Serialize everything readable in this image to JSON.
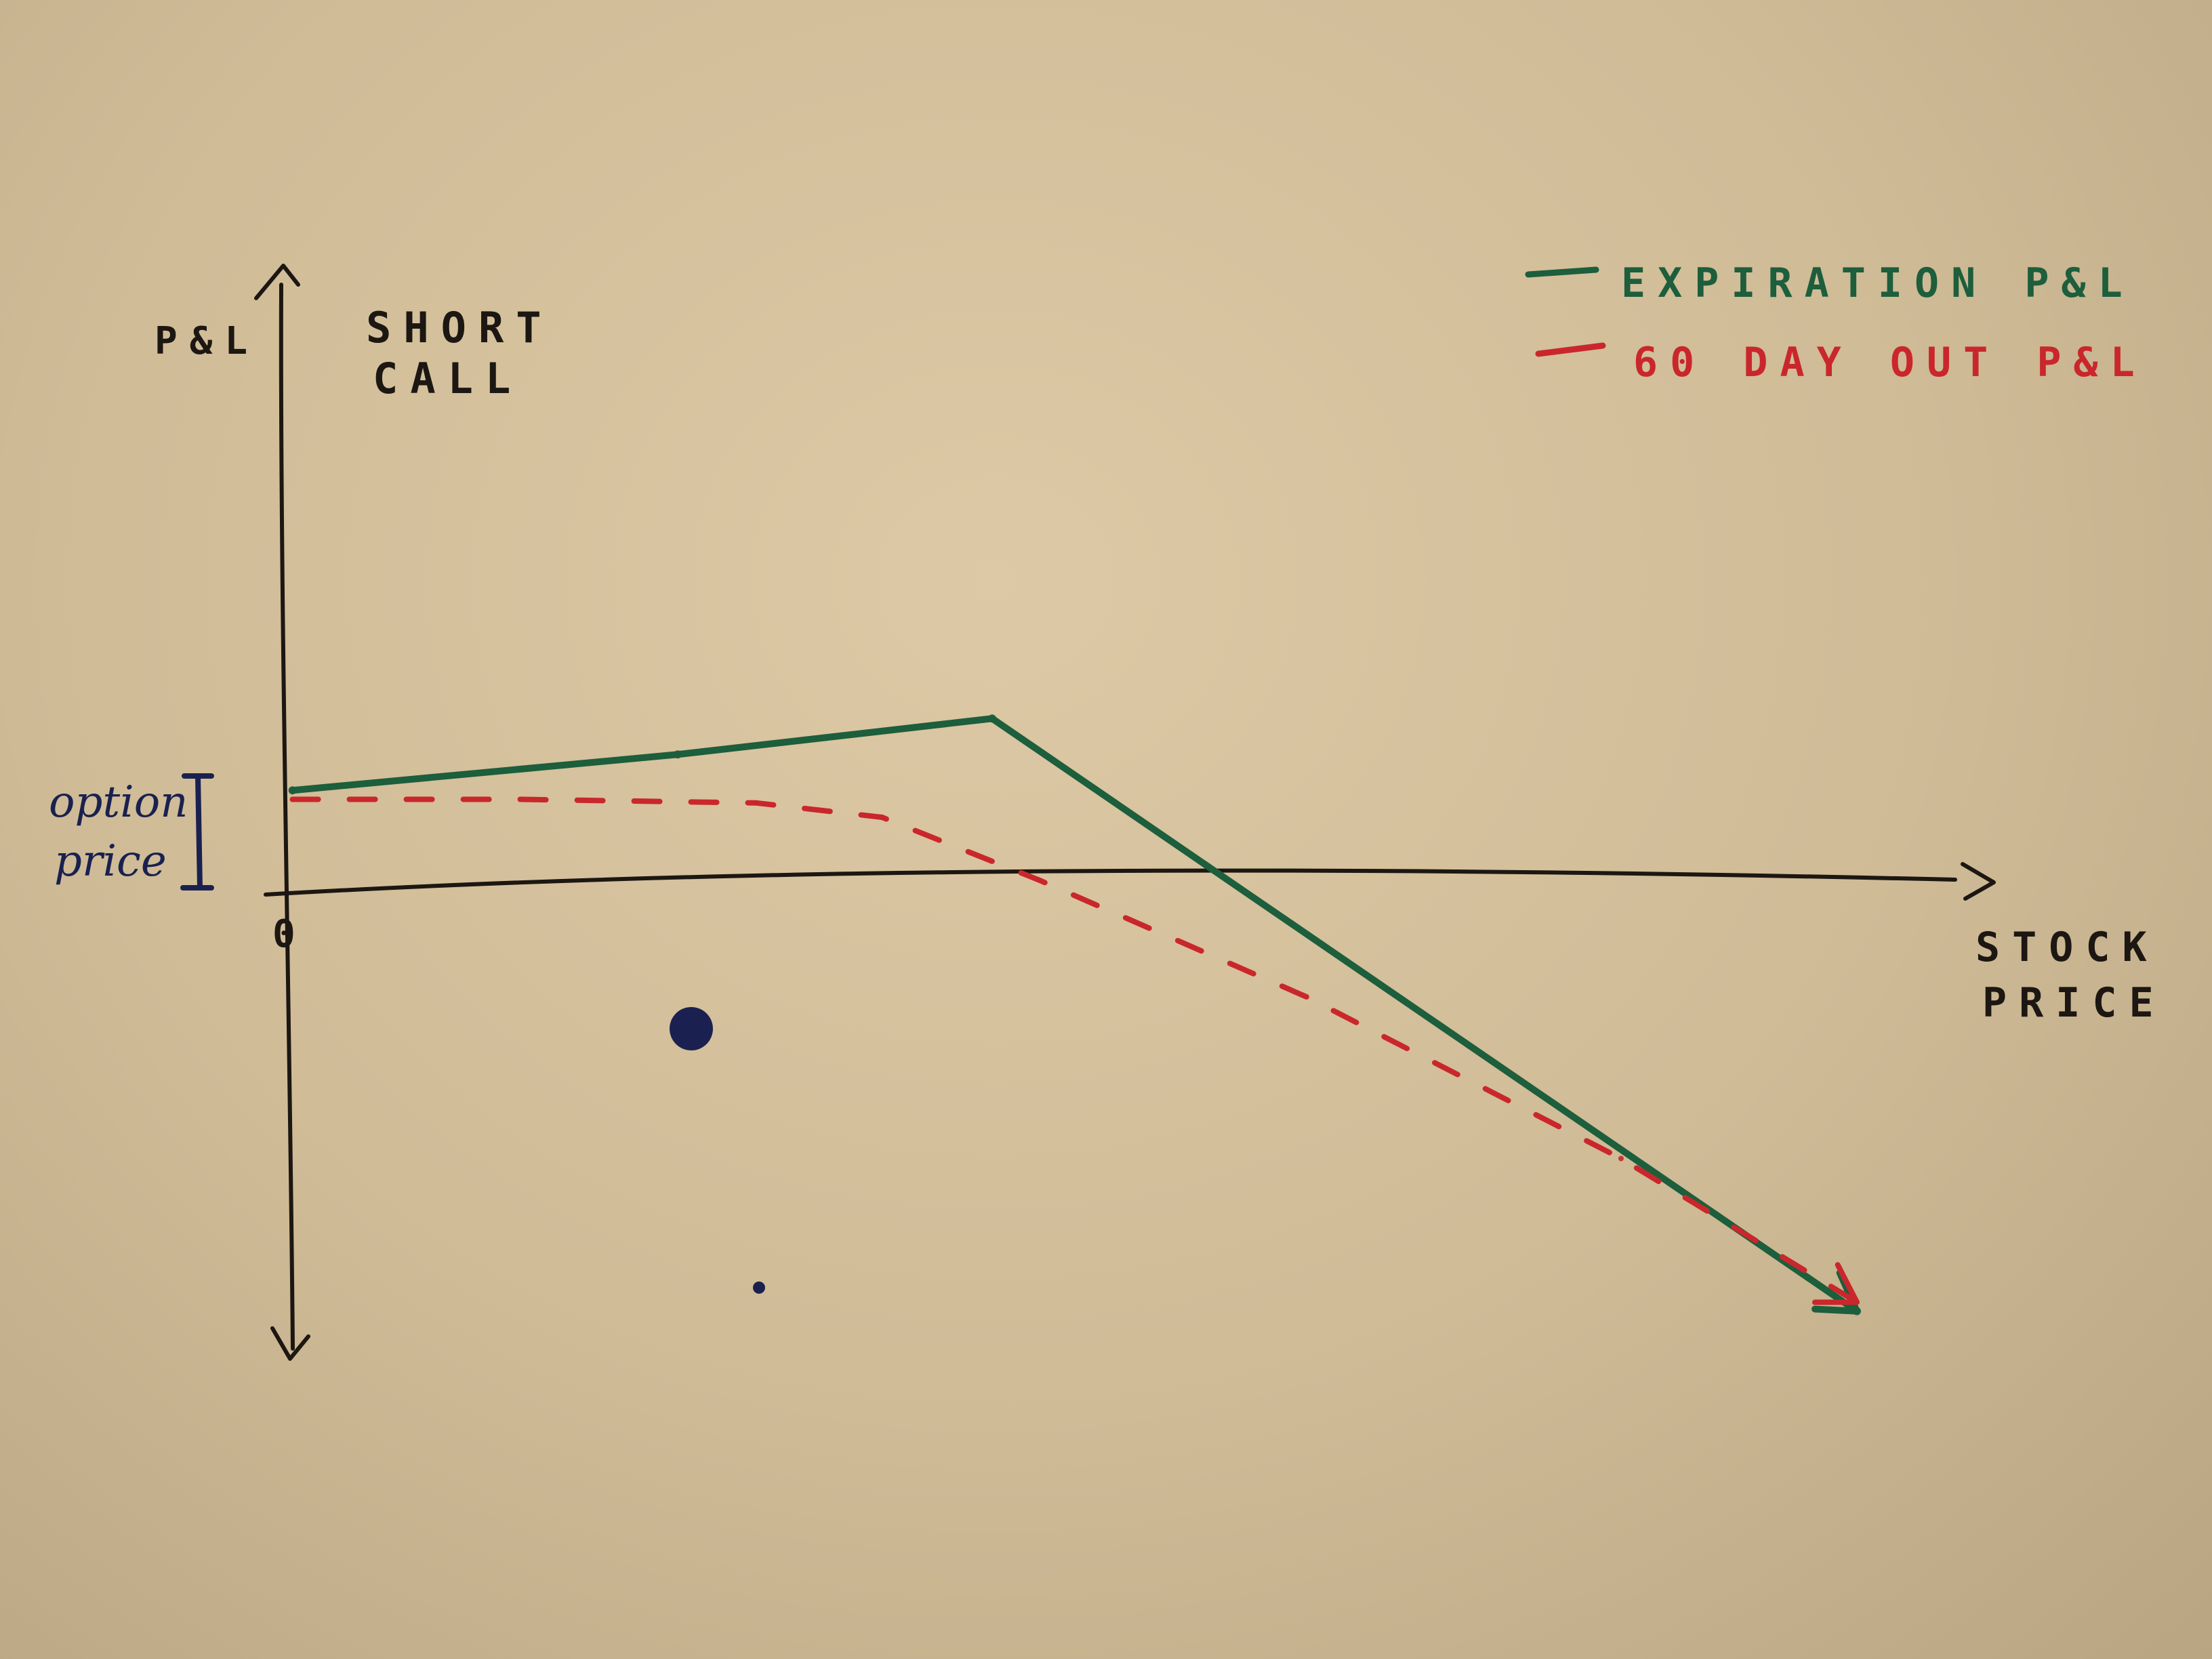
{
  "colors": {
    "ink_black": "#1c1712",
    "ink_green": "#1d5e3c",
    "ink_red": "#c9272c",
    "ink_blue": "#1a2150"
  },
  "labels": {
    "y_axis": "P&L",
    "x_axis_line1": "STOCK",
    "x_axis_line2": "PRICE",
    "origin": "0",
    "title_line1": "SHORT",
    "title_line2": "CALL",
    "option_price_line1": "option",
    "option_price_line2": "price"
  },
  "chart_data": {
    "type": "line",
    "title": "SHORT CALL",
    "xlabel": "STOCK PRICE",
    "ylabel": "P&L",
    "legend_position": "top-right",
    "grid": false,
    "annotations": [
      "0",
      "option price"
    ],
    "series": [
      {
        "name": "EXPIRATION P&L",
        "color": "#1d5e3c",
        "style": "solid",
        "x": [
          0.05,
          2.5,
          4.5,
          10.0
        ],
        "y": [
          0.55,
          0.75,
          0.95,
          -2.35
        ]
      },
      {
        "name": "60 DAY OUT P&L",
        "color": "#c9272c",
        "style": "dashed",
        "x": [
          0.05,
          1.5,
          3.0,
          3.8,
          4.8,
          6.5,
          8.5,
          10.0
        ],
        "y": [
          0.5,
          0.5,
          0.48,
          0.4,
          0.05,
          -0.6,
          -1.5,
          -2.3
        ]
      }
    ]
  }
}
